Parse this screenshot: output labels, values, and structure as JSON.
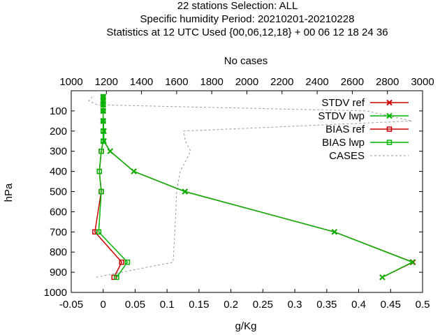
{
  "chart_data": {
    "type": "line",
    "title": [
      "22 stations Selection: ALL",
      "Specific humidity  Period: 20210201-20210228",
      "Statistics at 12 UTC  Used {00,06,12,18} + 00 06 12 18 24 36"
    ],
    "xlabel": "g/Kg",
    "ylabel": "hPa",
    "x2label": "No cases",
    "xlim": [
      -0.05,
      0.5
    ],
    "ylim": [
      1000,
      0
    ],
    "x2lim": [
      1000,
      3000
    ],
    "y_inverted": true,
    "grid": false,
    "legend_position": "top-right",
    "xticks": [
      "-0.05",
      "0",
      "0.05",
      "0.1",
      "0.15",
      "0.2",
      "0.25",
      "0.3",
      "0.35",
      "0.4",
      "0.45",
      "0.5"
    ],
    "yticks": [
      "100",
      "200",
      "300",
      "400",
      "500",
      "600",
      "700",
      "800",
      "900",
      "1000"
    ],
    "x2ticks": [
      "1000",
      "1200",
      "1400",
      "1600",
      "1800",
      "2000",
      "2200",
      "2400",
      "2600",
      "2800",
      "3000"
    ],
    "levels": [
      30,
      50,
      70,
      100,
      150,
      200,
      250,
      300,
      400,
      500,
      700,
      850,
      925
    ],
    "series": [
      {
        "name": "STDV ref",
        "axis": "x1",
        "color": "#cc0000",
        "style": "solid",
        "marker": "x",
        "values": [
          0.0,
          0.0,
          0.0,
          0.0,
          0.0,
          0.001,
          0.001,
          0.011,
          0.048,
          0.128,
          0.362,
          0.485,
          0.437
        ]
      },
      {
        "name": "STDV lwp",
        "axis": "x1",
        "color": "#00b400",
        "style": "solid",
        "marker": "x",
        "values": [
          0.0,
          0.0,
          0.0,
          0.0,
          0.0,
          0.001,
          0.001,
          0.011,
          0.048,
          0.128,
          0.362,
          0.484,
          0.437
        ]
      },
      {
        "name": "BIAS ref",
        "axis": "x1",
        "color": "#cc0000",
        "style": "solid",
        "marker": "square",
        "values": [
          0.0,
          0.0,
          0.0,
          0.0,
          0.0,
          0.0,
          0.0,
          -0.003,
          -0.006,
          -0.003,
          -0.013,
          0.029,
          0.017
        ]
      },
      {
        "name": "BIAS lwp",
        "axis": "x1",
        "color": "#00b400",
        "style": "solid",
        "marker": "square",
        "values": [
          0.0,
          0.0,
          0.0,
          0.0,
          0.0,
          0.0,
          0.0,
          -0.003,
          -0.006,
          -0.003,
          -0.007,
          0.038,
          0.021
        ]
      },
      {
        "name": "CASES",
        "axis": "x2",
        "color": "#999999",
        "style": "dashed",
        "marker": "none",
        "values": [
          1120,
          1100,
          1150,
          2680,
          2940,
          1640,
          1650,
          1680,
          1620,
          1600,
          1590,
          1580,
          1140
        ]
      }
    ]
  }
}
